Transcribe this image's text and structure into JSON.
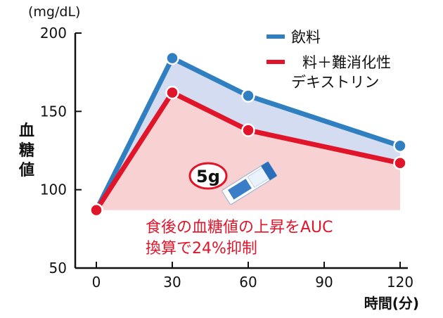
{
  "chart_data": {
    "type": "line",
    "x": [
      0,
      30,
      60,
      90,
      120
    ],
    "xlim": [
      0,
      120
    ],
    "ylim": [
      50,
      200
    ],
    "yticks": [
      50,
      100,
      150,
      200
    ],
    "xticks": [
      0,
      30,
      60,
      90,
      120
    ],
    "y_unit": "(mg/dL)",
    "ylabel": "血糖値",
    "xlabel": "時間(分)",
    "series": [
      {
        "name": "飲料",
        "color": "#2f7fc1",
        "x": [
          0,
          30,
          60,
          120
        ],
        "values": [
          87,
          184,
          160,
          128
        ]
      },
      {
        "name": "料＋難消化性デキストリン",
        "name_lines": [
          "料＋難消化性",
          "デキストリン"
        ],
        "color": "#e0152a",
        "x": [
          0,
          30,
          60,
          120
        ],
        "values": [
          87,
          162,
          138,
          117
        ]
      }
    ],
    "fill_colors": {
      "area_between": "#d4dcf1",
      "area_under": "#f8d2d2"
    },
    "annotations": {
      "badge": "5g",
      "result_lines": [
        "食後の血糖値の上昇をAUC",
        "換算で24%抑制"
      ]
    },
    "grid": false,
    "legend_position": "top-right"
  }
}
